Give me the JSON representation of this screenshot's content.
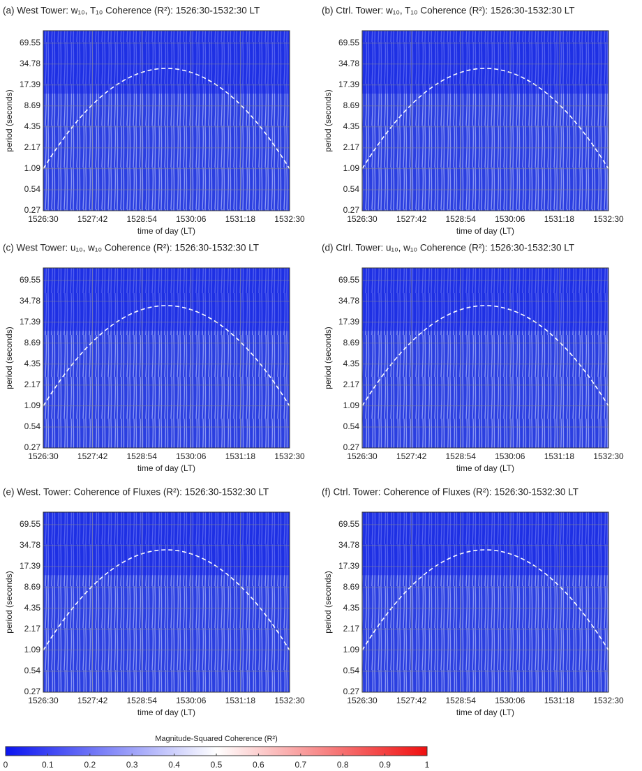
{
  "chart_data": [
    {
      "type": "heatmap",
      "title": "(a) West Tower: w₁₀, T₁₀ Coherence (R²): 1526:30-1532:30 LT",
      "xlabel": "time of day (LT)",
      "ylabel": "period (seconds)",
      "xticks": [
        "1526:30",
        "1527:42",
        "1528:54",
        "1530:06",
        "1531:18",
        "1532:30"
      ],
      "ylim": [
        0.27,
        105
      ],
      "yticks": [
        0.27,
        0.54,
        1.09,
        2.17,
        4.35,
        8.69,
        17.39,
        34.78,
        69.55
      ],
      "log_scale": true,
      "grid": true
    },
    {
      "type": "heatmap",
      "title": "(b) Ctrl. Tower: w₁₀, T₁₀ Coherence (R²): 1526:30-1532:30 LT",
      "xlabel": "time of day (LT)",
      "ylabel": "period (seconds)",
      "xticks": [
        "1526:30",
        "1527:42",
        "1528:54",
        "1530:06",
        "1531:18",
        "1532:30"
      ],
      "ylim": [
        0.27,
        105
      ],
      "yticks": [
        0.27,
        0.54,
        1.09,
        2.17,
        4.35,
        8.69,
        17.39,
        34.78,
        69.55
      ],
      "log_scale": true,
      "grid": true
    },
    {
      "type": "heatmap",
      "title": "(c) West Tower: u₁₀, w₁₀ Coherence (R²): 1526:30-1532:30 LT",
      "xlabel": "time of day (LT)",
      "ylabel": "period (seconds)",
      "xticks": [
        "1526:30",
        "1527:42",
        "1528:54",
        "1530:06",
        "1531:18",
        "1532:30"
      ],
      "ylim": [
        0.27,
        105
      ],
      "yticks": [
        0.27,
        0.54,
        1.09,
        2.17,
        4.35,
        8.69,
        17.39,
        34.78,
        69.55
      ],
      "log_scale": true,
      "grid": true
    },
    {
      "type": "heatmap",
      "title": "(d) Ctrl. Tower: u₁₀, w₁₀ Coherence (R²): 1526:30-1532:30 LT",
      "xlabel": "time of day (LT)",
      "ylabel": "period (seconds)",
      "xticks": [
        "1526:30",
        "1527:42",
        "1528:54",
        "1530:06",
        "1531:18",
        "1532:30"
      ],
      "ylim": [
        0.27,
        105
      ],
      "yticks": [
        0.27,
        0.54,
        1.09,
        2.17,
        4.35,
        8.69,
        17.39,
        34.78,
        69.55
      ],
      "log_scale": true,
      "grid": true
    },
    {
      "type": "heatmap",
      "title": "(e) West. Tower: Coherence of Fluxes (R²): 1526:30-1532:30 LT",
      "xlabel": "time of day (LT)",
      "ylabel": "period (seconds)",
      "xticks": [
        "1526:30",
        "1527:42",
        "1528:54",
        "1530:06",
        "1531:18",
        "1532:30"
      ],
      "ylim": [
        0.27,
        105
      ],
      "yticks": [
        0.27,
        0.54,
        1.09,
        2.17,
        4.35,
        8.69,
        17.39,
        34.78,
        69.55
      ],
      "log_scale": true,
      "grid": true
    },
    {
      "type": "heatmap",
      "title": "(f) Ctrl. Tower: Coherence of Fluxes (R²): 1526:30-1532:30 LT",
      "xlabel": "time of day (LT)",
      "ylabel": "period (seconds)",
      "xticks": [
        "1526:30",
        "1527:42",
        "1528:54",
        "1530:06",
        "1531:18",
        "1532:30"
      ],
      "ylim": [
        0.27,
        105
      ],
      "yticks": [
        0.27,
        0.54,
        1.09,
        2.17,
        4.35,
        8.69,
        17.39,
        34.78,
        69.55
      ],
      "log_scale": true,
      "grid": true
    }
  ],
  "colorbar": {
    "label": "Magnitude-Squared Coherence (R²)",
    "lim": [
      0,
      1
    ],
    "ticks": [
      0,
      0.1,
      0.2,
      0.3,
      0.4,
      0.5,
      0.6,
      0.7,
      0.8,
      0.9,
      1
    ],
    "colors": [
      "#0a14f0",
      "#ffffff",
      "#f01010"
    ]
  }
}
